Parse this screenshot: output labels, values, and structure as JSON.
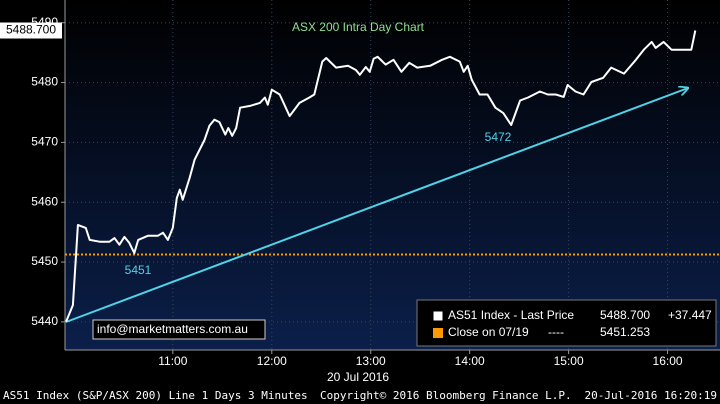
{
  "chart_data": {
    "type": "line",
    "title": "ASX 200 Intra Day Chart",
    "x_label": "20 Jul 2016",
    "xlim": [
      9.91,
      16.53
    ],
    "xticks": [
      {
        "value": 11,
        "label": "11:00"
      },
      {
        "value": 12,
        "label": "12:00"
      },
      {
        "value": 13,
        "label": "13:00"
      },
      {
        "value": 14,
        "label": "14:00"
      },
      {
        "value": 15,
        "label": "15:00"
      },
      {
        "value": 16,
        "label": "16:00"
      }
    ],
    "ylim": [
      5435.3,
      5493.8
    ],
    "yticks": [
      5440,
      5450,
      5460,
      5470,
      5480,
      5490
    ],
    "grid": true,
    "series": [
      {
        "name": "AS51 Index - Last Price",
        "color": "#ffffff",
        "last_label": "5488.700",
        "change_label": "+37.447",
        "x": [
          9.92,
          9.99,
          10.04,
          10.12,
          10.16,
          10.26,
          10.36,
          10.41,
          10.46,
          10.51,
          10.56,
          10.61,
          10.65,
          10.75,
          10.85,
          10.9,
          10.95,
          11.0,
          11.04,
          11.07,
          11.1,
          11.17,
          11.22,
          11.32,
          11.37,
          11.42,
          11.47,
          11.53,
          11.56,
          11.6,
          11.64,
          11.68,
          11.78,
          11.88,
          11.93,
          11.96,
          12.0,
          12.08,
          12.18,
          12.28,
          12.38,
          12.43,
          12.51,
          12.55,
          12.65,
          12.77,
          12.85,
          12.89,
          12.95,
          12.99,
          13.03,
          13.07,
          13.15,
          13.23,
          13.31,
          13.39,
          13.47,
          13.6,
          13.72,
          13.8,
          13.9,
          13.94,
          13.98,
          14.02,
          14.1,
          14.18,
          14.26,
          14.34,
          14.42,
          14.51,
          14.59,
          14.71,
          14.79,
          14.87,
          14.95,
          14.99,
          15.07,
          15.15,
          15.23,
          15.35,
          15.43,
          15.56,
          15.68,
          15.76,
          15.84,
          15.88,
          15.96,
          16.04,
          16.24,
          16.28
        ],
        "values": [
          5440.0,
          5442.8,
          5456.2,
          5455.7,
          5453.7,
          5453.4,
          5453.4,
          5454.0,
          5452.9,
          5454.2,
          5453.2,
          5451.5,
          5453.7,
          5454.4,
          5454.4,
          5454.9,
          5453.7,
          5455.7,
          5460.7,
          5462.1,
          5460.4,
          5464.1,
          5467.1,
          5470.4,
          5472.8,
          5473.8,
          5473.4,
          5471.3,
          5472.4,
          5471.1,
          5472.4,
          5475.8,
          5476.1,
          5476.6,
          5477.5,
          5476.3,
          5478.8,
          5478.0,
          5474.4,
          5476.6,
          5477.5,
          5478.0,
          5483.5,
          5484.1,
          5482.5,
          5482.8,
          5482.1,
          5481.3,
          5482.6,
          5481.8,
          5484.0,
          5484.3,
          5483.0,
          5483.8,
          5481.8,
          5483.3,
          5482.5,
          5482.8,
          5483.8,
          5484.3,
          5483.5,
          5481.8,
          5482.8,
          5480.5,
          5478.0,
          5478.0,
          5475.8,
          5474.9,
          5472.9,
          5477.0,
          5477.5,
          5478.5,
          5478.0,
          5478.0,
          5477.6,
          5479.6,
          5478.5,
          5478.0,
          5480.1,
          5480.8,
          5482.5,
          5481.5,
          5483.8,
          5485.5,
          5486.8,
          5485.8,
          5486.8,
          5485.5,
          5485.5,
          5488.7
        ]
      }
    ],
    "reference_lines": [
      {
        "name": "Close on 07/19",
        "dash_label": "----",
        "color": "#ff9900",
        "value": 5451.253
      }
    ],
    "annotations": [
      "5451",
      "5472"
    ],
    "contact": "info@marketmatters.com.au"
  },
  "footer": {
    "security": "AS51 Index (S&P/ASX 200) Line 1 Days 3 Minutes",
    "copyright": "Copyright© 2016 Bloomberg Finance L.P.",
    "timestamp": "20-Jul-2016 16:20:19"
  }
}
